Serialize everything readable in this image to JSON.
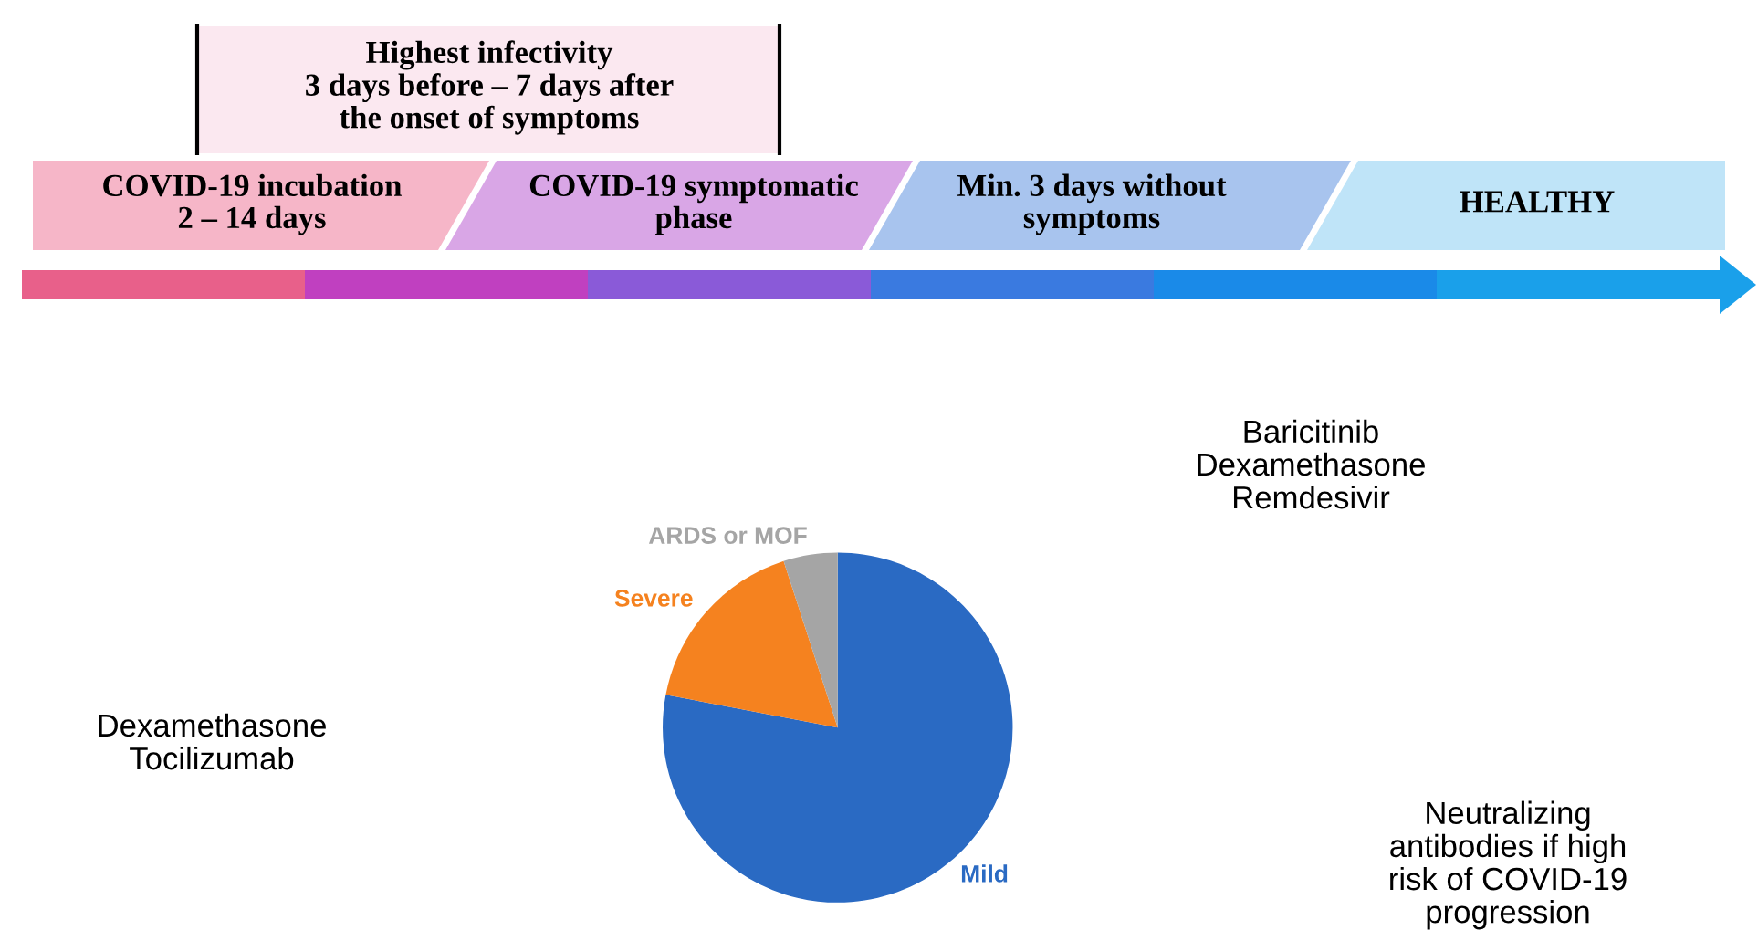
{
  "chart_data": {
    "type": "pie",
    "categories": [
      "Mild",
      "Severe",
      "ARDS or MOF"
    ],
    "values": [
      78,
      17,
      5
    ],
    "colors": [
      "#2a6ac3",
      "#f5821f",
      "#a5a5a5"
    ],
    "annotations": [
      "Highest infectivity\n3 days before – 7 days after\nthe onset of symptoms",
      "COVID-19 incubation\n2 – 14 days",
      "COVID-19 symptomatic\nphase",
      "Min. 3 days without\nsymptoms",
      "HEALTHY",
      "Baricitinib\nDexamethasone\nRemdesivir",
      "Dexamethasone\nTocilizumab",
      "Neutralizing\nantibodies if high\nrisk of COVID-19\nprogression"
    ]
  }
}
